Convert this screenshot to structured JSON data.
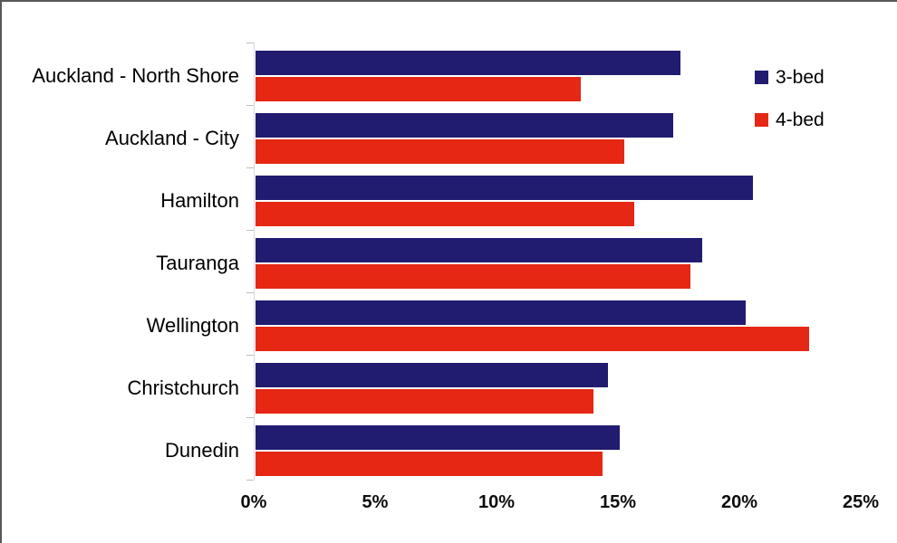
{
  "chart_data": {
    "type": "bar",
    "orientation": "horizontal",
    "title": "",
    "xlabel": "",
    "ylabel": "",
    "categories": [
      "Auckland - North Shore",
      "Auckland - City",
      "Hamilton",
      "Tauranga",
      "Wellington",
      "Christchurch",
      "Dunedin"
    ],
    "series": [
      {
        "name": "3-bed",
        "color": "#211C70",
        "values": [
          17.5,
          17.2,
          20.5,
          18.4,
          20.2,
          14.5,
          15.0
        ]
      },
      {
        "name": "4-bed",
        "color": "#E52713",
        "values": [
          13.4,
          15.2,
          15.6,
          17.9,
          22.8,
          13.9,
          14.3
        ]
      }
    ],
    "xlim": [
      0,
      25
    ],
    "x_ticks": [
      {
        "value": 0,
        "label": "0%"
      },
      {
        "value": 5,
        "label": "5%"
      },
      {
        "value": 10,
        "label": "10%"
      },
      {
        "value": 15,
        "label": "15%"
      },
      {
        "value": 20,
        "label": "20%"
      },
      {
        "value": 25,
        "label": "25%"
      }
    ],
    "grid": false,
    "legend_position": "top-right",
    "axis_tick_color": "#bfbfbf",
    "axis_line_color": "#d9d9d9",
    "frame_border_color": "#585858",
    "text_color": "#000000"
  },
  "layout_meta": {
    "legend": {
      "items": [
        {
          "label": "3-bed"
        },
        {
          "label": "4-bed"
        }
      ]
    }
  }
}
